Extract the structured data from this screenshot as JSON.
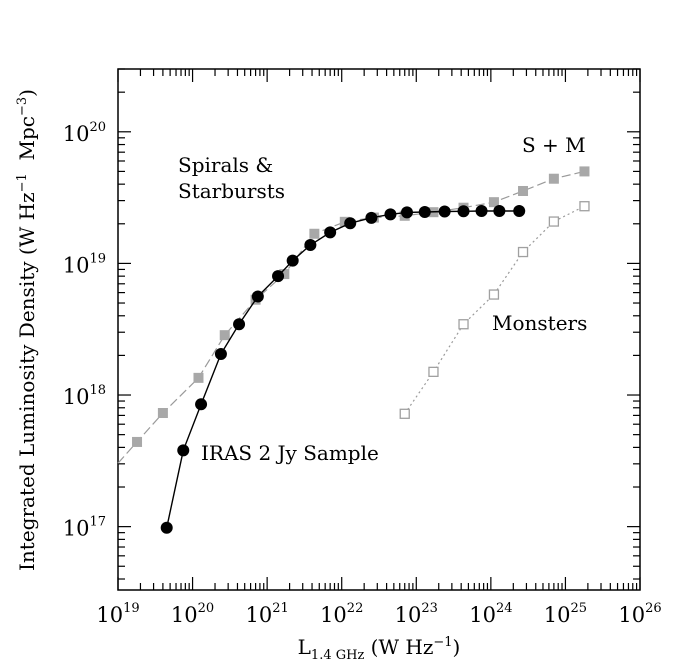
{
  "chart_data": {
    "type": "line",
    "xlabel": {
      "base": "L",
      "sub": "1.4 GHz",
      "units": "(W Hz",
      "units_exp": "−1",
      "units_close": ")"
    },
    "ylabel": {
      "text": "Integrated Luminosity Density (W Hz",
      "exp1": "−1",
      "mid": "  Mpc",
      "exp2": "−3",
      "close": ")"
    },
    "xscale": "log",
    "yscale": "log",
    "xlim": [
      1e+19,
      1e+26
    ],
    "ylim": [
      3.3e+16,
      3e+20
    ],
    "x_ticks": [
      {
        "base": "10",
        "exp": "19",
        "value": 1e+19
      },
      {
        "base": "10",
        "exp": "20",
        "value": 1e+20
      },
      {
        "base": "10",
        "exp": "21",
        "value": 1e+21
      },
      {
        "base": "10",
        "exp": "22",
        "value": 1e+22
      },
      {
        "base": "10",
        "exp": "23",
        "value": 1e+23
      },
      {
        "base": "10",
        "exp": "24",
        "value": 1e+24
      },
      {
        "base": "10",
        "exp": "25",
        "value": 1e+25
      },
      {
        "base": "10",
        "exp": "26",
        "value": 1e+26
      }
    ],
    "y_ticks": [
      {
        "base": "10",
        "exp": "17",
        "value": 1e+17
      },
      {
        "base": "10",
        "exp": "18",
        "value": 1e+18
      },
      {
        "base": "10",
        "exp": "19",
        "value": 1e+19
      },
      {
        "base": "10",
        "exp": "20",
        "value": 1e+20
      }
    ],
    "annotations": {
      "spirals_line1": "Spirals &",
      "spirals_line2": "Starbursts",
      "sm": "S + M",
      "monsters": "Monsters",
      "iras": "IRAS 2 Jy Sample"
    },
    "series": [
      {
        "key": "iras",
        "marker": "filled-circle",
        "line": "solid",
        "color": "#000000",
        "points": [
          [
            4.5e+19,
            9.8e+16
          ],
          [
            7.5e+19,
            3.8e+17
          ],
          [
            1.3e+20,
            8.5e+17
          ],
          [
            2.4e+20,
            2.05e+18
          ],
          [
            4.2e+20,
            3.45e+18
          ],
          [
            7.5e+20,
            5.6e+18
          ],
          [
            1.4e+21,
            8e+18
          ],
          [
            2.2e+21,
            1.05e+19
          ],
          [
            3.8e+21,
            1.38e+19
          ],
          [
            7e+21,
            1.72e+19
          ],
          [
            1.3e+22,
            2.02e+19
          ],
          [
            2.5e+22,
            2.22e+19
          ],
          [
            4.5e+22,
            2.36e+19
          ],
          [
            7.5e+22,
            2.44e+19
          ],
          [
            1.3e+23,
            2.46e+19
          ],
          [
            2.4e+23,
            2.48e+19
          ],
          [
            4.3e+23,
            2.49e+19
          ],
          [
            7.5e+23,
            2.5e+19
          ],
          [
            1.3e+24,
            2.5e+19
          ],
          [
            2.4e+24,
            2.5e+19
          ]
        ]
      },
      {
        "key": "sm",
        "marker": "filled-square",
        "line": "dash",
        "color": "#a8a8a8",
        "points": [
          [
            1.8e+19,
            4.4e+17
          ],
          [
            4e+19,
            7.3e+17
          ],
          [
            1.2e+20,
            1.35e+18
          ],
          [
            2.7e+20,
            2.85e+18
          ],
          [
            7e+20,
            5.3e+18
          ],
          [
            1.7e+21,
            8.3e+18
          ],
          [
            4.3e+21,
            1.68e+19
          ],
          [
            1.1e+22,
            2.07e+19
          ],
          [
            2.7e+22,
            2.23e+19
          ],
          [
            7e+22,
            2.3e+19
          ],
          [
            1.7e+23,
            2.45e+19
          ],
          [
            4.3e+23,
            2.65e+19
          ],
          [
            1.1e+24,
            2.92e+19
          ],
          [
            2.7e+24,
            3.55e+19
          ],
          [
            7e+24,
            4.4e+19
          ],
          [
            1.8e+25,
            5e+19
          ]
        ]
      },
      {
        "key": "monsters",
        "marker": "open-square",
        "line": "dot",
        "color": "#a8a8a8",
        "points": [
          [
            7e+22,
            7.2e+17
          ],
          [
            1.7e+23,
            1.5e+18
          ],
          [
            4.3e+23,
            3.45e+18
          ],
          [
            1.1e+24,
            5.8e+18
          ],
          [
            2.7e+24,
            1.22e+19
          ],
          [
            7e+24,
            2.08e+19
          ],
          [
            1.8e+25,
            2.72e+19
          ]
        ]
      }
    ]
  }
}
